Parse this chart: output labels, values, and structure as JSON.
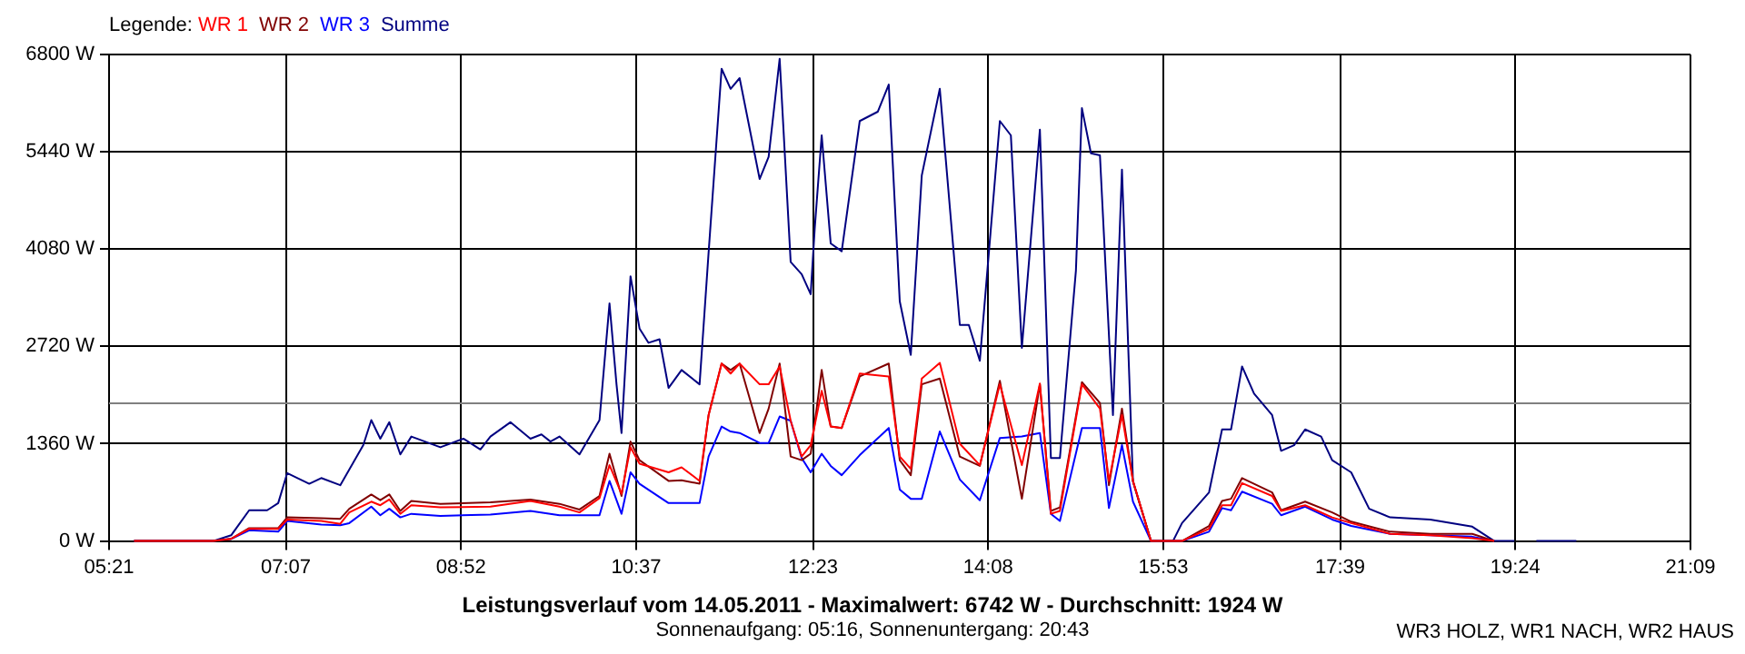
{
  "chart_data": {
    "type": "line",
    "title": "Leistungsverlauf vom 14.05.2011 - Maximalwert: 6742 W - Durchschnitt: 1924 W",
    "subtitle": "Sonnenaufgang: 05:16, Sonnenuntergang: 20:43",
    "annotations": [
      "WR3 HOLZ, WR1 NACH, WR2 HAUS"
    ],
    "legend_title": "Legende:",
    "legend": "top left",
    "grid": true,
    "line_style": "solid",
    "x": [
      5.6,
      6.39,
      6.57,
      6.75,
      7.04,
      7.13,
      7.47,
      7.66,
      7.75,
      7.97,
      8.06,
      8.15,
      8.26,
      8.37,
      8.66,
      9.16,
      9.56,
      9.85,
      10.05,
      10.25,
      10.35,
      10.47,
      10.56,
      10.65,
      10.94,
      11.07,
      11.25,
      11.34,
      11.47,
      11.56,
      11.65,
      11.85,
      11.94,
      12.05,
      12.16,
      12.27,
      12.36,
      12.47,
      12.56,
      12.67,
      12.85,
      13.14,
      13.25,
      13.36,
      13.47,
      13.65,
      13.85,
      14.05,
      14.25,
      14.47,
      14.65,
      14.76,
      14.85,
      15.07,
      15.25,
      15.34,
      15.47,
      15.58,
      15.76,
      16.07,
      16.34,
      16.47,
      16.56,
      16.67,
      16.97,
      17.06,
      17.3,
      17.57,
      17.76,
      18.15,
      18.55,
      18.97,
      19.19
    ],
    "series": [
      {
        "name": "WR 1",
        "color": "#ff0000",
        "values": [
          0,
          0,
          30,
          170,
          170,
          300,
          280,
          240,
          400,
          550,
          500,
          580,
          380,
          500,
          470,
          480,
          560,
          480,
          400,
          600,
          1060,
          660,
          1310,
          1080,
          960,
          1030,
          840,
          1760,
          2480,
          2340,
          2480,
          2190,
          2190,
          2440,
          1680,
          1180,
          1340,
          2100,
          1600,
          1580,
          2340,
          2300,
          1180,
          1010,
          2270,
          2490,
          1360,
          1060,
          2190,
          1060,
          2200,
          380,
          420,
          2190,
          1850,
          840,
          1760,
          840,
          0,
          0,
          170,
          500,
          500,
          810,
          630,
          420,
          500,
          330,
          250,
          100,
          80,
          40,
          0
        ]
      },
      {
        "name": "WR 2",
        "color": "#800000",
        "values": [
          0,
          0,
          30,
          180,
          180,
          330,
          320,
          310,
          450,
          650,
          570,
          650,
          420,
          560,
          520,
          540,
          580,
          520,
          440,
          630,
          1220,
          630,
          1390,
          1130,
          840,
          850,
          800,
          1760,
          2480,
          2390,
          2480,
          1510,
          1850,
          2480,
          1180,
          1130,
          1220,
          2390,
          1600,
          1580,
          2300,
          2480,
          1130,
          920,
          2190,
          2270,
          1180,
          1050,
          2240,
          590,
          2190,
          420,
          470,
          2220,
          1930,
          780,
          1850,
          840,
          0,
          0,
          210,
          560,
          590,
          880,
          680,
          430,
          550,
          400,
          270,
          130,
          100,
          100,
          0
        ]
      },
      {
        "name": "WR 3",
        "color": "#0000ff",
        "values": [
          0,
          0,
          30,
          150,
          130,
          280,
          230,
          220,
          250,
          480,
          360,
          450,
          330,
          380,
          350,
          370,
          420,
          360,
          360,
          360,
          840,
          380,
          960,
          800,
          530,
          530,
          530,
          1180,
          1600,
          1530,
          1510,
          1370,
          1370,
          1740,
          1680,
          1160,
          960,
          1220,
          1050,
          920,
          1200,
          1580,
          720,
          590,
          590,
          1530,
          860,
          570,
          1440,
          1460,
          1510,
          380,
          280,
          1580,
          1580,
          460,
          1340,
          550,
          0,
          0,
          130,
          460,
          430,
          690,
          520,
          360,
          480,
          300,
          210,
          100,
          80,
          60,
          0
        ]
      },
      {
        "name": "Summe",
        "color": "#000080",
        "x": [
          5.6,
          6.39,
          6.57,
          6.75,
          6.93,
          7.04,
          7.13,
          7.35,
          7.47,
          7.66,
          7.89,
          7.97,
          8.06,
          8.15,
          8.26,
          8.37,
          8.66,
          8.89,
          9.06,
          9.16,
          9.36,
          9.56,
          9.67,
          9.76,
          9.85,
          10.05,
          10.25,
          10.35,
          10.42,
          10.47,
          10.56,
          10.65,
          10.74,
          10.85,
          10.94,
          11.07,
          11.25,
          11.34,
          11.47,
          11.56,
          11.65,
          11.85,
          11.94,
          12.05,
          12.16,
          12.27,
          12.36,
          12.4,
          12.47,
          12.56,
          12.67,
          12.85,
          13.03,
          13.14,
          13.25,
          13.36,
          13.47,
          13.65,
          13.85,
          13.94,
          14.05,
          14.25,
          14.36,
          14.47,
          14.65,
          14.76,
          14.85,
          15.01,
          15.07,
          15.16,
          15.25,
          15.38,
          15.47,
          15.58,
          15.76,
          15.98,
          16.07,
          16.34,
          16.47,
          16.56,
          16.67,
          16.79,
          16.97,
          17.06,
          17.19,
          17.3,
          17.46,
          17.57,
          17.76,
          17.94,
          18.15,
          18.55,
          18.97,
          19.19,
          19.39,
          19.5,
          19.61,
          20.01
        ],
        "values": [
          0,
          0,
          80,
          430,
          430,
          530,
          950,
          800,
          880,
          780,
          1340,
          1690,
          1430,
          1660,
          1210,
          1460,
          1310,
          1430,
          1280,
          1460,
          1660,
          1430,
          1490,
          1390,
          1460,
          1210,
          1690,
          3320,
          2190,
          1510,
          3700,
          2970,
          2770,
          2820,
          2140,
          2390,
          2190,
          4030,
          6600,
          6320,
          6470,
          5060,
          5370,
          6740,
          3900,
          3730,
          3450,
          4360,
          5670,
          4160,
          4050,
          5870,
          6000,
          6380,
          3350,
          2600,
          5110,
          6320,
          3020,
          3020,
          2520,
          5870,
          5670,
          2700,
          5750,
          1160,
          1160,
          3780,
          6050,
          5420,
          5390,
          1760,
          5190,
          830,
          0,
          0,
          250,
          680,
          1560,
          1560,
          2440,
          2060,
          1760,
          1260,
          1340,
          1560,
          1460,
          1130,
          960,
          450,
          330,
          300,
          200,
          0,
          0,
          null,
          0,
          0
        ]
      }
    ],
    "xlim": [
      5.35,
      21.15
    ],
    "xticks": [
      {
        "value": 5.35,
        "label": "05:21"
      },
      {
        "value": 7.1167,
        "label": "07:07"
      },
      {
        "value": 8.8667,
        "label": "08:52"
      },
      {
        "value": 10.6167,
        "label": "10:37"
      },
      {
        "value": 12.3833,
        "label": "12:23"
      },
      {
        "value": 14.1333,
        "label": "14:08"
      },
      {
        "value": 15.8833,
        "label": "15:53"
      },
      {
        "value": 17.65,
        "label": "17:39"
      },
      {
        "value": 19.4,
        "label": "19:24"
      },
      {
        "value": 21.15,
        "label": "21:09"
      }
    ],
    "ylim": [
      0,
      6800
    ],
    "yticks": [
      {
        "value": 0,
        "label": "0 W"
      },
      {
        "value": 1360,
        "label": "1360 W"
      },
      {
        "value": 2720,
        "label": "2720 W"
      },
      {
        "value": 4080,
        "label": "4080 W"
      },
      {
        "value": 5440,
        "label": "5440 W"
      },
      {
        "value": 6800,
        "label": "6800 W"
      }
    ],
    "ref_lines": [
      {
        "axis": "y",
        "value": 1924,
        "color": "#808080"
      }
    ]
  }
}
